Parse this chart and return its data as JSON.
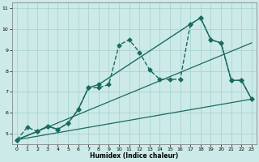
{
  "xlabel": "Humidex (Indice chaleur)",
  "background_color": "#cceae8",
  "line_color": "#1a6b60",
  "grid_color": "#aad4d0",
  "xlim": [
    -0.5,
    23.5
  ],
  "ylim": [
    4.5,
    11.3
  ],
  "yticks": [
    5,
    6,
    7,
    8,
    9,
    10,
    11
  ],
  "xticks": [
    0,
    1,
    2,
    3,
    4,
    5,
    6,
    7,
    8,
    9,
    10,
    11,
    12,
    13,
    14,
    15,
    16,
    17,
    18,
    19,
    20,
    21,
    22,
    23
  ],
  "series": [
    {
      "x": [
        0,
        1,
        2,
        3,
        4,
        5,
        6,
        7,
        8,
        9,
        10,
        11,
        12,
        13,
        14,
        15,
        16,
        17,
        18,
        19,
        20,
        21,
        22,
        23
      ],
      "y": [
        4.7,
        5.3,
        5.1,
        5.35,
        5.2,
        5.5,
        6.15,
        7.2,
        7.2,
        7.35,
        9.25,
        9.5,
        8.9,
        8.05,
        7.6,
        7.6,
        7.6,
        10.25,
        10.55,
        9.5,
        9.35,
        7.55,
        7.55,
        6.65
      ],
      "marker": "D",
      "markersize": 2.5,
      "linestyle": "--",
      "linewidth": 1.0
    },
    {
      "x": [
        0,
        2,
        3,
        4,
        5,
        6,
        7,
        8,
        17,
        18,
        19,
        20,
        21,
        22,
        23
      ],
      "y": [
        4.7,
        5.1,
        5.35,
        5.2,
        5.5,
        6.15,
        7.2,
        7.35,
        10.25,
        10.55,
        9.5,
        9.35,
        7.55,
        7.55,
        6.65
      ],
      "marker": "D",
      "markersize": 2.5,
      "linestyle": "-",
      "linewidth": 1.0
    },
    {
      "x": [
        0,
        23
      ],
      "y": [
        4.7,
        6.65
      ],
      "marker": null,
      "markersize": 0,
      "linestyle": "-",
      "linewidth": 0.9
    },
    {
      "x": [
        0,
        23
      ],
      "y": [
        4.7,
        9.35
      ],
      "marker": null,
      "markersize": 0,
      "linestyle": "-",
      "linewidth": 0.9
    }
  ]
}
